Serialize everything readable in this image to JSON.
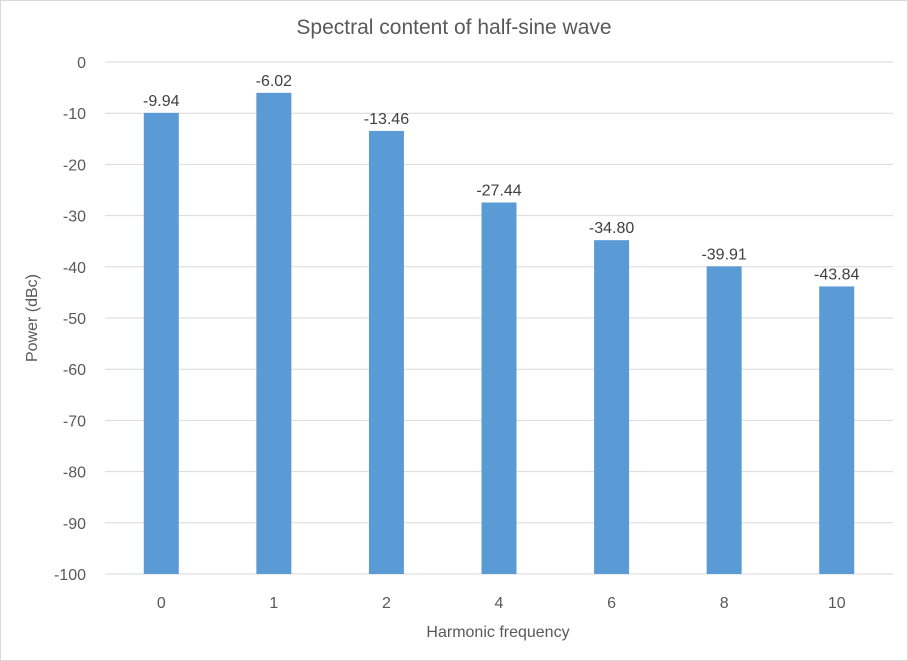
{
  "chart_data": {
    "type": "bar",
    "title": "Spectral content of half-sine wave",
    "xlabel": "Harmonic frequency",
    "ylabel": "Power (dBc)",
    "categories": [
      "0",
      "1",
      "2",
      "4",
      "6",
      "8",
      "10"
    ],
    "values": [
      -9.94,
      -6.02,
      -13.46,
      -27.44,
      -34.8,
      -39.91,
      -43.84
    ],
    "data_labels": [
      "-9.94",
      "-6.02",
      "-13.46",
      "-27.44",
      "-34.80",
      "-39.91",
      "-43.84"
    ],
    "ylim": [
      -100,
      0
    ],
    "yticks": [
      0,
      -10,
      -20,
      -30,
      -40,
      -50,
      -60,
      -70,
      -80,
      -90,
      -100
    ],
    "ytick_labels": [
      "0",
      "-10",
      "-20",
      "-30",
      "-40",
      "-50",
      "-60",
      "-70",
      "-80",
      "-90",
      "-100"
    ],
    "grid": true,
    "legend": "none",
    "colors": {
      "bar": "#5b9bd5",
      "grid": "#d9d9d9",
      "text": "#595959"
    }
  }
}
